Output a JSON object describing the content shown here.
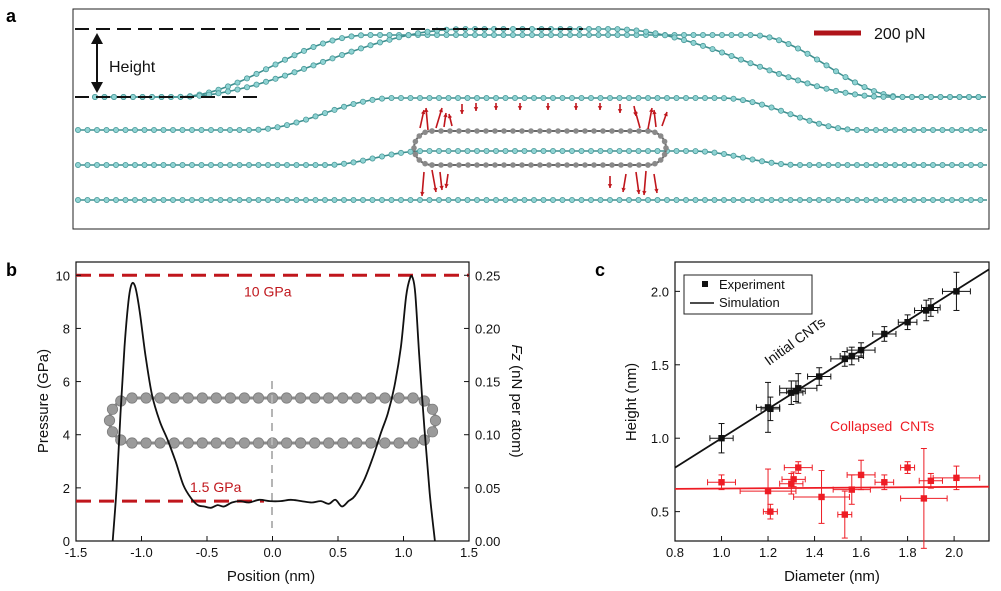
{
  "figure": {
    "panel_a_letter": "a",
    "panel_b_letter": "b",
    "panel_c_letter": "c",
    "colors": {
      "ink": "#111111",
      "red": "#c0161c",
      "bright_red": "#ee1c24",
      "atom_cyan": "#8fd3d3",
      "atom_grey": "#8a8a8a",
      "grey_dash": "#b5b5b5"
    }
  },
  "panel_a": {
    "height_label": "Height",
    "scale_bar_label": "200 pN",
    "graphene_layers": 5
  },
  "chart_data": [
    {
      "type": "line",
      "panel": "b",
      "xlabel": "Position (nm)",
      "ylabel": "Pressure (GPa)",
      "y2label": "Fz (nN per atom)",
      "y2label_italic": "Fz",
      "y2label_rest": " (nN per atom)",
      "xlim": [
        -1.5,
        1.5
      ],
      "ylim": [
        0,
        10.5
      ],
      "y2lim": [
        0,
        0.2625
      ],
      "xticks": [
        -1.5,
        -1.0,
        -0.5,
        0.0,
        0.5,
        1.0,
        1.5
      ],
      "xtick_labels": [
        "-1.5",
        "-1.0",
        "-0.5",
        "0.0",
        "0.5",
        "1.0",
        "1.5"
      ],
      "yticks": [
        0,
        2,
        4,
        6,
        8,
        10
      ],
      "ytick_labels": [
        "0",
        "2",
        "4",
        "6",
        "8",
        "10"
      ],
      "y2ticks": [
        0,
        0.05,
        0.1,
        0.15,
        0.2,
        0.25
      ],
      "y2tick_labels": [
        "0.00",
        "0.05",
        "0.10",
        "0.15",
        "0.20",
        "0.25"
      ],
      "reference_lines": [
        {
          "y": 10,
          "label": "10 GPa"
        },
        {
          "y": 1.5,
          "label": "1.5 GPa"
        }
      ],
      "series": [
        {
          "name": "Pressure",
          "x": [
            -1.22,
            -1.19,
            -1.16,
            -1.13,
            -1.1,
            -1.08,
            -1.06,
            -1.04,
            -1.01,
            -0.97,
            -0.92,
            -0.86,
            -0.8,
            -0.74,
            -0.68,
            -0.62,
            -0.57,
            -0.52,
            -0.47,
            -0.42,
            -0.37,
            -0.31,
            -0.25,
            -0.18,
            -0.1,
            -0.02,
            0.06,
            0.14,
            0.22,
            0.3,
            0.37,
            0.43,
            0.48,
            0.53,
            0.58,
            0.63,
            0.7,
            0.77,
            0.83,
            0.88,
            0.93,
            0.98,
            1.02,
            1.05,
            1.07,
            1.09,
            1.12,
            1.16,
            1.2,
            1.24
          ],
          "y": [
            0.0,
            2.0,
            4.8,
            7.3,
            9.0,
            9.6,
            9.7,
            9.4,
            8.5,
            7.0,
            5.5,
            4.5,
            3.8,
            3.0,
            2.1,
            1.6,
            1.35,
            1.3,
            1.25,
            1.35,
            1.3,
            1.45,
            1.5,
            1.45,
            1.55,
            1.5,
            1.5,
            1.55,
            1.5,
            1.45,
            1.5,
            1.4,
            1.55,
            1.3,
            1.5,
            1.7,
            2.3,
            3.2,
            4.1,
            4.8,
            5.8,
            7.3,
            9.2,
            9.9,
            9.9,
            9.3,
            7.0,
            4.2,
            1.8,
            0.0
          ]
        }
      ]
    },
    {
      "type": "scatter",
      "panel": "c",
      "xlabel": "Diameter (nm)",
      "ylabel": "Height (nm)",
      "xlim": [
        0.8,
        2.15
      ],
      "ylim": [
        0.3,
        2.2
      ],
      "xticks": [
        0.8,
        1.0,
        1.2,
        1.4,
        1.6,
        1.8,
        2.0
      ],
      "xtick_labels": [
        "0.8",
        "1.0",
        "1.2",
        "1.4",
        "1.6",
        "1.8",
        "2.0"
      ],
      "yticks": [
        0.5,
        1.0,
        1.5,
        2.0
      ],
      "ytick_labels": [
        "0.5",
        "1.0",
        "1.5",
        "2.0"
      ],
      "legend": [
        "Experiment",
        "Simulation"
      ],
      "legend_position": "top-left",
      "annotations": [
        "Initial CNTs",
        "Collapsed  CNTs"
      ],
      "series": [
        {
          "name": "Initial CNTs (Experiment)",
          "color": "black",
          "points": [
            {
              "x": 1.0,
              "y": 1.0,
              "xerr": 0.05,
              "yerr": 0.1
            },
            {
              "x": 1.2,
              "y": 1.21,
              "xerr": 0.05,
              "yerr": 0.17
            },
            {
              "x": 1.21,
              "y": 1.2,
              "xerr": 0.04,
              "yerr": 0.08
            },
            {
              "x": 1.3,
              "y": 1.31,
              "xerr": 0.05,
              "yerr": 0.08
            },
            {
              "x": 1.32,
              "y": 1.32,
              "xerr": 0.04,
              "yerr": 0.07
            },
            {
              "x": 1.33,
              "y": 1.34,
              "xerr": 0.08,
              "yerr": 0.1
            },
            {
              "x": 1.42,
              "y": 1.42,
              "xerr": 0.05,
              "yerr": 0.06
            },
            {
              "x": 1.53,
              "y": 1.54,
              "xerr": 0.06,
              "yerr": 0.05
            },
            {
              "x": 1.56,
              "y": 1.56,
              "xerr": 0.05,
              "yerr": 0.06
            },
            {
              "x": 1.6,
              "y": 1.6,
              "xerr": 0.06,
              "yerr": 0.05
            },
            {
              "x": 1.7,
              "y": 1.71,
              "xerr": 0.05,
              "yerr": 0.05
            },
            {
              "x": 1.8,
              "y": 1.79,
              "xerr": 0.04,
              "yerr": 0.05
            },
            {
              "x": 1.88,
              "y": 1.87,
              "xerr": 0.05,
              "yerr": 0.07
            },
            {
              "x": 1.9,
              "y": 1.89,
              "xerr": 0.04,
              "yerr": 0.06
            },
            {
              "x": 2.01,
              "y": 2.0,
              "xerr": 0.06,
              "yerr": 0.13
            }
          ],
          "fit": {
            "x": [
              0.8,
              2.15
            ],
            "y": [
              0.8,
              2.15
            ]
          }
        },
        {
          "name": "Collapsed CNTs (Experiment)",
          "color": "red",
          "points": [
            {
              "x": 1.0,
              "y": 0.7,
              "xerr": 0.06,
              "yerr": 0.05
            },
            {
              "x": 1.2,
              "y": 0.64,
              "xerr": 0.12,
              "yerr": 0.15
            },
            {
              "x": 1.21,
              "y": 0.5,
              "xerr": 0.03,
              "yerr": 0.05
            },
            {
              "x": 1.3,
              "y": 0.69,
              "xerr": 0.05,
              "yerr": 0.07
            },
            {
              "x": 1.31,
              "y": 0.72,
              "xerr": 0.05,
              "yerr": 0.05
            },
            {
              "x": 1.33,
              "y": 0.8,
              "xerr": 0.06,
              "yerr": 0.04
            },
            {
              "x": 1.43,
              "y": 0.6,
              "xerr": 0.12,
              "yerr": 0.18
            },
            {
              "x": 1.53,
              "y": 0.48,
              "xerr": 0.03,
              "yerr": 0.16
            },
            {
              "x": 1.56,
              "y": 0.65,
              "xerr": 0.08,
              "yerr": 0.1
            },
            {
              "x": 1.6,
              "y": 0.75,
              "xerr": 0.06,
              "yerr": 0.1
            },
            {
              "x": 1.7,
              "y": 0.7,
              "xerr": 0.04,
              "yerr": 0.05
            },
            {
              "x": 1.8,
              "y": 0.8,
              "xerr": 0.03,
              "yerr": 0.04
            },
            {
              "x": 1.87,
              "y": 0.59,
              "xerr": 0.1,
              "yerr": 0.34
            },
            {
              "x": 1.9,
              "y": 0.71,
              "xerr": 0.05,
              "yerr": 0.05
            },
            {
              "x": 2.01,
              "y": 0.73,
              "xerr": 0.1,
              "yerr": 0.08
            }
          ],
          "fit": {
            "x": [
              0.8,
              2.15
            ],
            "y": [
              0.655,
              0.67
            ]
          }
        }
      ]
    }
  ]
}
